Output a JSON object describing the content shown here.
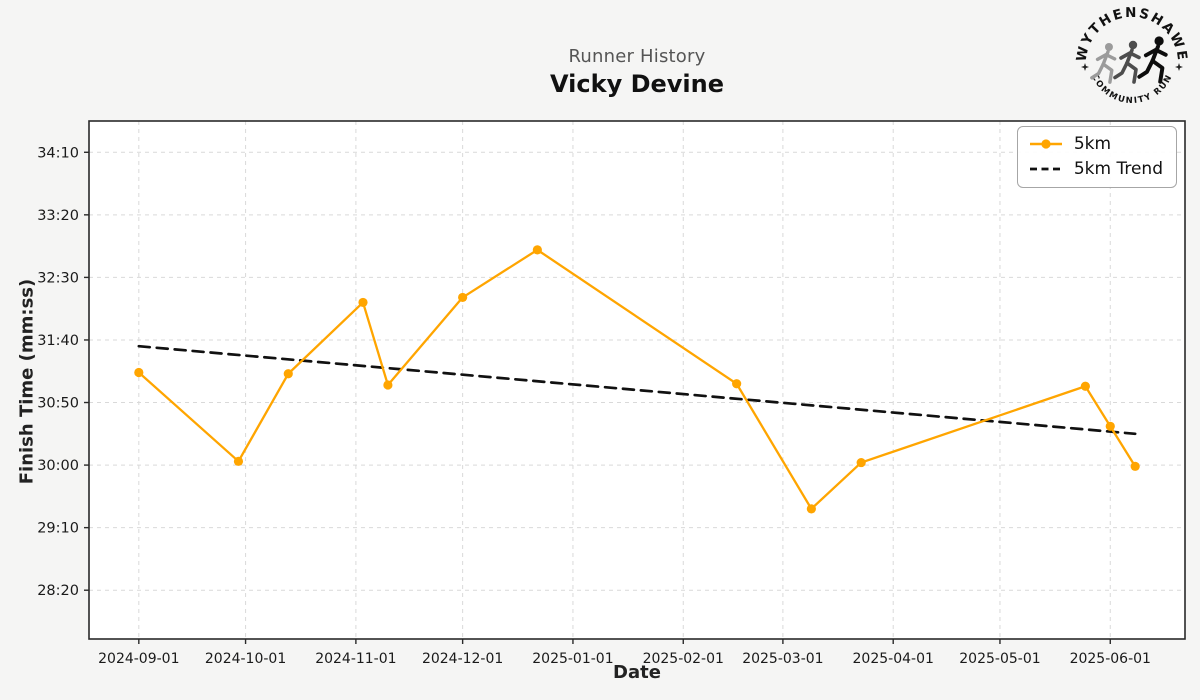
{
  "header": {
    "subtitle": "Runner History",
    "title": "Vicky Devine"
  },
  "axis_labels": {
    "x": "Date",
    "y": "Finish Time (mm:ss)"
  },
  "legend": {
    "items": [
      {
        "label": "5km"
      },
      {
        "label": "5km Trend"
      }
    ]
  },
  "logo": {
    "top_text": "WYTHENSHAWE",
    "bottom_text": "COMMUNITY RUN"
  },
  "colors": {
    "series": "#FFA500",
    "trend": "#111111",
    "grid": "#d9d9d9",
    "frame": "#2a2a2a",
    "figure_bg": "#f5f5f4",
    "plot_bg": "#ffffff",
    "tick_text": "#1a1a1a"
  },
  "chart_data": {
    "type": "line",
    "title": "Runner History — Vicky Devine",
    "xlabel": "Date",
    "ylabel": "Finish Time (mm:ss)",
    "grid": true,
    "legend_position": "upper right",
    "xlim": [
      "2024-08-18",
      "2025-06-22"
    ],
    "ylim_mmss": [
      "27:41",
      "34:35"
    ],
    "x_ticks": [
      "2024-09-01",
      "2024-10-01",
      "2024-11-01",
      "2024-12-01",
      "2025-01-01",
      "2025-02-01",
      "2025-03-01",
      "2025-04-01",
      "2025-05-01",
      "2025-06-01"
    ],
    "y_ticks": [
      "28:20",
      "29:10",
      "30:00",
      "30:50",
      "31:40",
      "32:30",
      "33:20",
      "34:10"
    ],
    "series": [
      {
        "name": "5km",
        "style": "solid",
        "markers": true,
        "color": "#FFA500",
        "points": [
          {
            "date": "2024-09-01",
            "time": "31:14"
          },
          {
            "date": "2024-09-29",
            "time": "30:03"
          },
          {
            "date": "2024-10-13",
            "time": "31:13"
          },
          {
            "date": "2024-11-03",
            "time": "32:10"
          },
          {
            "date": "2024-11-10",
            "time": "31:04"
          },
          {
            "date": "2024-12-01",
            "time": "32:14"
          },
          {
            "date": "2024-12-22",
            "time": "32:52"
          },
          {
            "date": "2025-02-16",
            "time": "31:05"
          },
          {
            "date": "2025-03-09",
            "time": "29:25"
          },
          {
            "date": "2025-03-23",
            "time": "30:02"
          },
          {
            "date": "2025-05-25",
            "time": "31:03"
          },
          {
            "date": "2025-06-01",
            "time": "30:31"
          },
          {
            "date": "2025-06-08",
            "time": "29:59"
          }
        ]
      },
      {
        "name": "5km Trend",
        "style": "dashed",
        "markers": false,
        "color": "#111111",
        "points": [
          {
            "date": "2024-09-01",
            "time": "31:35"
          },
          {
            "date": "2025-06-08",
            "time": "30:25"
          }
        ]
      }
    ]
  }
}
